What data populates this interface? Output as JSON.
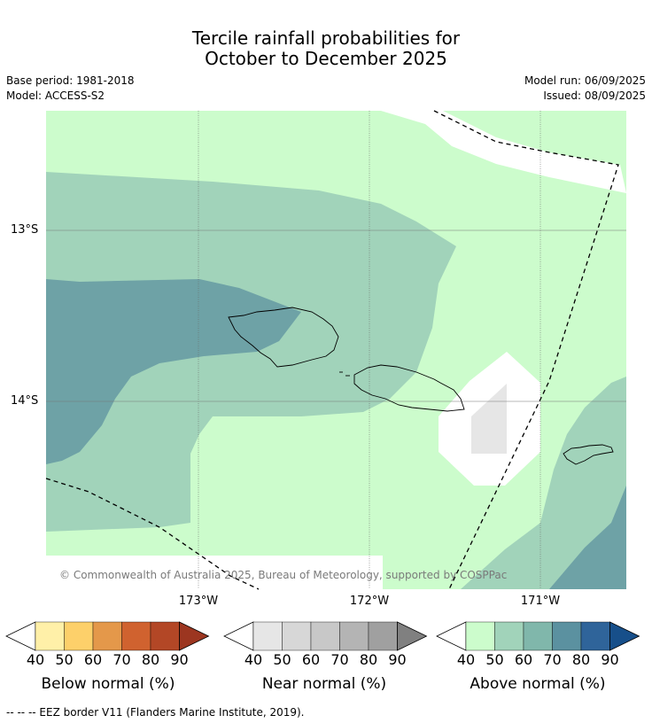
{
  "title": {
    "line1": "Tercile rainfall probabilities for",
    "line2": "October to December 2025"
  },
  "meta": {
    "base_period": "Base period: 1981-2018",
    "model": "Model: ACCESS-S2",
    "model_run": "Model run: 06/09/2025",
    "issued": "Issued: 08/09/2025"
  },
  "map": {
    "lat_labels": [
      "13°S",
      "14°S"
    ],
    "lon_labels": [
      "173°W",
      "172°W",
      "171°W"
    ],
    "copyright": "© Commonwealth of Australia 2025, Bureau of Meteorology, supported by COSPPac"
  },
  "colorbars": [
    {
      "label": "Below normal (%)",
      "ticks": [
        "40",
        "50",
        "60",
        "70",
        "80",
        "90"
      ],
      "colors": [
        "#fff0a8",
        "#fdd06a",
        "#e4984a",
        "#d0622f",
        "#b34726",
        "#9c3620"
      ]
    },
    {
      "label": "Near normal (%)",
      "ticks": [
        "40",
        "50",
        "60",
        "70",
        "80",
        "90"
      ],
      "colors": [
        "#e6e6e6",
        "#d7d7d7",
        "#c8c8c8",
        "#b4b4b4",
        "#a0a0a0",
        "#808080"
      ]
    },
    {
      "label": "Above normal (%)",
      "ticks": [
        "40",
        "50",
        "60",
        "70",
        "80",
        "90"
      ],
      "colors": [
        "#ccfccc",
        "#a1d3ba",
        "#80b7ab",
        "#5b91a0",
        "#2f649a",
        "#174f8a"
      ]
    }
  ],
  "legend": {
    "eez": "-- -- -- EEZ border V11 (Flanders Marine Institute, 2019)."
  }
}
